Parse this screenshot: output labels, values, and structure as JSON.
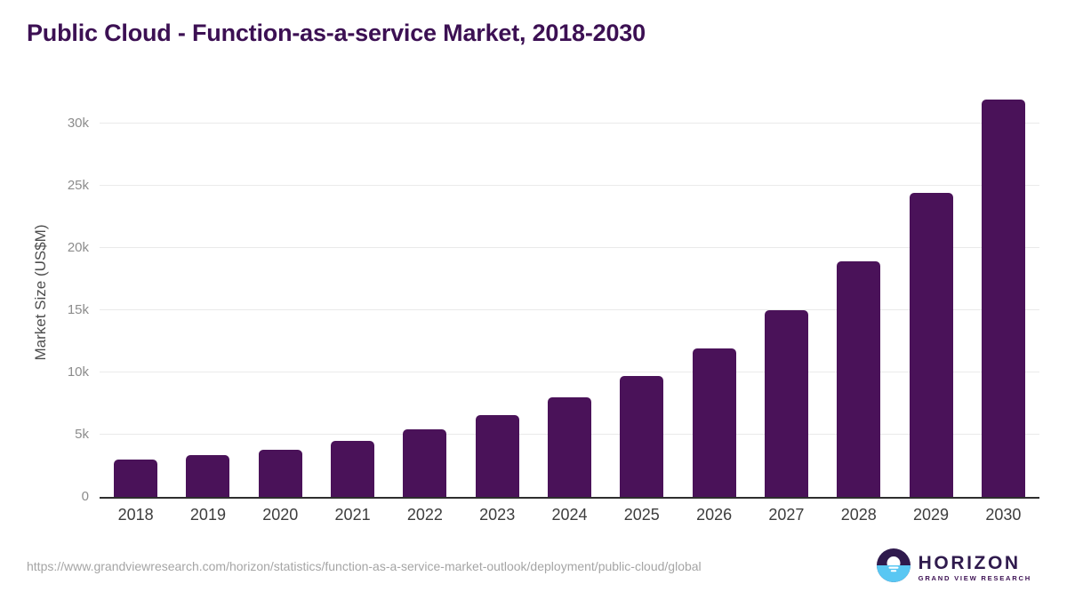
{
  "page": {
    "title": "Public Cloud - Function-as-a-service Market, 2018-2030"
  },
  "chart_data": {
    "type": "bar",
    "title": "Public Cloud - Function-as-a-service Market, 2018-2030",
    "xlabel": "",
    "ylabel": "Market Size (US$M)",
    "categories": [
      "2018",
      "2019",
      "2020",
      "2021",
      "2022",
      "2023",
      "2024",
      "2025",
      "2026",
      "2027",
      "2028",
      "2029",
      "2030"
    ],
    "values": [
      3000,
      3370,
      3800,
      4510,
      5440,
      6600,
      7980,
      9750,
      11950,
      15000,
      18950,
      24450,
      31950
    ],
    "ylim": [
      0,
      32500
    ],
    "yticks": [
      {
        "value": 0,
        "label": "0"
      },
      {
        "value": 5000,
        "label": "5k"
      },
      {
        "value": 10000,
        "label": "10k"
      },
      {
        "value": 15000,
        "label": "15k"
      },
      {
        "value": 20000,
        "label": "20k"
      },
      {
        "value": 25000,
        "label": "25k"
      },
      {
        "value": 30000,
        "label": "30k"
      }
    ],
    "grid": true,
    "legend_position": "none",
    "bar_color": "#4a1259"
  },
  "footer": {
    "source_url": "https://www.grandviewresearch.com/horizon/statistics/function-as-a-service-market-outlook/deployment/public-cloud/global",
    "logo": {
      "brand": "HORIZON",
      "tagline": "GRAND VIEW RESEARCH"
    }
  },
  "colors": {
    "title": "#3c1053",
    "bar": "#4a1259",
    "axis_line": "#2e2e2e",
    "gridline": "#eaeaea",
    "ytick_label": "#8c8c8c",
    "xtick_label": "#3d3d3d",
    "url_text": "#a5a5a5",
    "logo_purple": "#2f1a4d",
    "logo_blue": "#59c7f3"
  }
}
